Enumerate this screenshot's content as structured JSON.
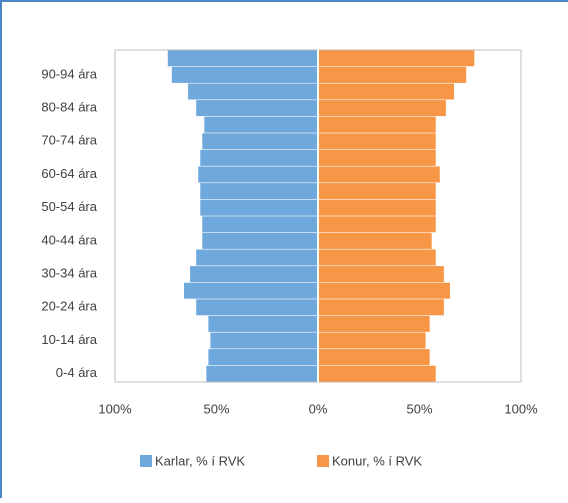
{
  "chart_data": {
    "type": "pyramid",
    "categories": [
      "0-4 ára",
      null,
      "10-14 ára",
      null,
      "20-24 ára",
      null,
      "30-34 ára",
      null,
      "40-44 ára",
      null,
      "50-54 ára",
      null,
      "60-64 ára",
      null,
      "70-74 ára",
      null,
      "80-84 ára",
      null,
      "90-94 ára",
      null
    ],
    "series": [
      {
        "name": "Karlar, % í RVK",
        "color": "#6fa8dc",
        "values": [
          -55,
          -54,
          -53,
          -54,
          -60,
          -66,
          -63,
          -60,
          -57,
          -57,
          -58,
          -58,
          -59,
          -58,
          -57,
          -56,
          -60,
          -64,
          -72,
          -74
        ]
      },
      {
        "name": "Konur, % í RVK",
        "color": "#f79646",
        "values": [
          58,
          55,
          53,
          55,
          62,
          65,
          62,
          58,
          56,
          58,
          58,
          58,
          60,
          58,
          58,
          58,
          63,
          67,
          73,
          77
        ]
      }
    ],
    "xlim": [
      -100,
      100
    ],
    "xticks": [
      {
        "value": -100,
        "label": "100%"
      },
      {
        "value": -50,
        "label": "50%"
      },
      {
        "value": 0,
        "label": "0%"
      },
      {
        "value": 50,
        "label": "50%"
      },
      {
        "value": 100,
        "label": "100%"
      }
    ],
    "legend": "bottom"
  }
}
